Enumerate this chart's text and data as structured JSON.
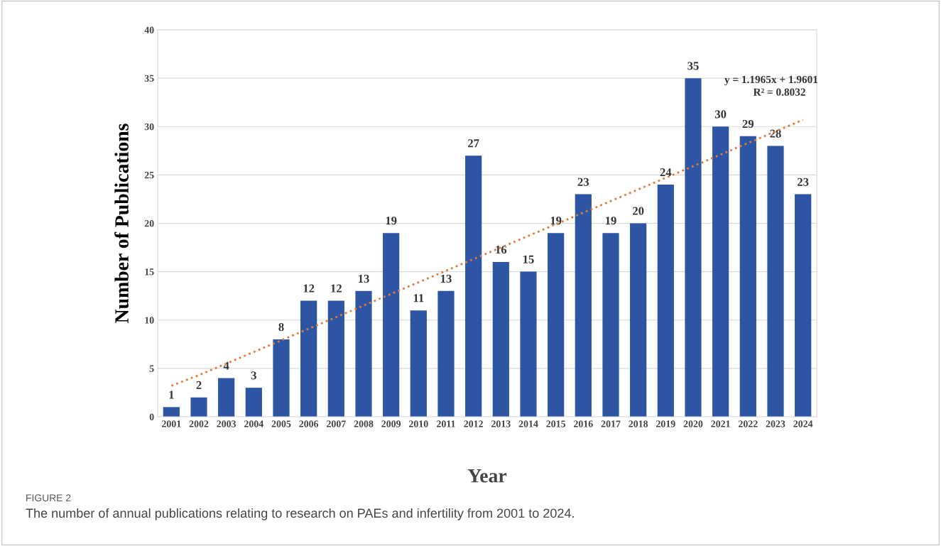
{
  "chart_data": {
    "type": "bar",
    "xlabel": "Year",
    "ylabel": "Number of Publications",
    "categories": [
      "2001",
      "2002",
      "2003",
      "2004",
      "2005",
      "2006",
      "2007",
      "2008",
      "2009",
      "2010",
      "2011",
      "2012",
      "2013",
      "2014",
      "2015",
      "2016",
      "2017",
      "2018",
      "2019",
      "2020",
      "2021",
      "2022",
      "2023",
      "2024"
    ],
    "series": [
      {
        "color": "#2e54a4",
        "values": [
          1,
          2,
          4,
          3,
          8,
          12,
          12,
          13,
          19,
          11,
          13,
          27,
          16,
          15,
          19,
          23,
          19,
          20,
          24,
          35,
          30,
          29,
          28,
          23
        ],
        "value_labels": [
          "1",
          "2",
          "4",
          "3",
          "8",
          "12",
          "12",
          "13",
          "19",
          "11",
          "13",
          "27",
          "16",
          "15",
          "19",
          "23",
          "19",
          "20",
          "24",
          "35",
          "30",
          "29",
          "28",
          "23"
        ]
      },
      {
        "type": "line",
        "color": "#e07b39",
        "line_style": "dotted",
        "values": [
          3.2,
          4.3,
          5.5,
          6.7,
          7.9,
          9.1,
          10.3,
          11.5,
          12.7,
          13.9,
          15.1,
          16.3,
          17.5,
          18.7,
          19.9,
          21.1,
          22.3,
          23.5,
          24.7,
          25.9,
          27.1,
          28.3,
          29.5,
          30.7
        ]
      }
    ],
    "ylim": [
      0,
      40
    ],
    "yticks": [
      0,
      5,
      10,
      15,
      20,
      25,
      30,
      35,
      40
    ],
    "grid": "y",
    "legend": false,
    "annotations": [
      "y = 1.1965x + 1.9601",
      "R² = 0.8032",
      "FIGURE 2",
      "The number of annual publications relating to research on PAEs and infertility from 2001 to 2024."
    ]
  }
}
